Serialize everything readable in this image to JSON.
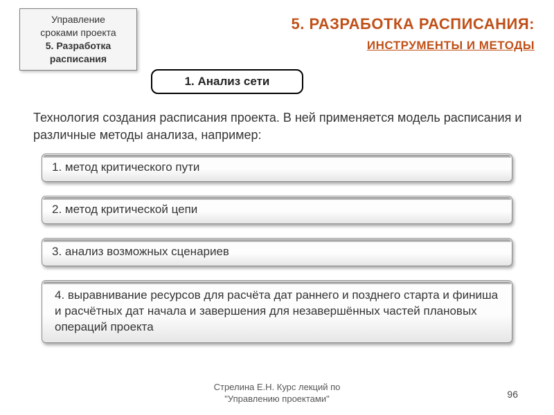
{
  "topic": {
    "line1": "Управление",
    "line2": "сроками проекта",
    "line3": "5. Разработка",
    "line4": "расписания"
  },
  "heading": {
    "main": "5. РАЗРАБОТКА РАСПИСАНИЯ:",
    "sub": "ИНСТРУМЕНТЫ И МЕТОДЫ"
  },
  "section": {
    "title": "1. Анализ сети"
  },
  "description": "Технология создания расписания проекта. В ней применяется модель расписания и различные методы анализа, например:",
  "methods": [
    "1. метод критического пути",
    "2. метод критической цепи",
    "3. анализ возможных сценариев",
    "4. выравнивание ресурсов для расчёта дат раннего и позднего старта и финиша и расчётных дат начала и завершения для незавершённых частей плановых операций проекта"
  ],
  "footer": {
    "line1": "Стрелина Е.Н. Курс лекций по",
    "line2": "\"Управлению проектами\""
  },
  "page_number": "96",
  "colors": {
    "heading": "#c05018",
    "text": "#333333",
    "box_bg": "#f5f5f5",
    "method_border": "#8a8a8a"
  }
}
